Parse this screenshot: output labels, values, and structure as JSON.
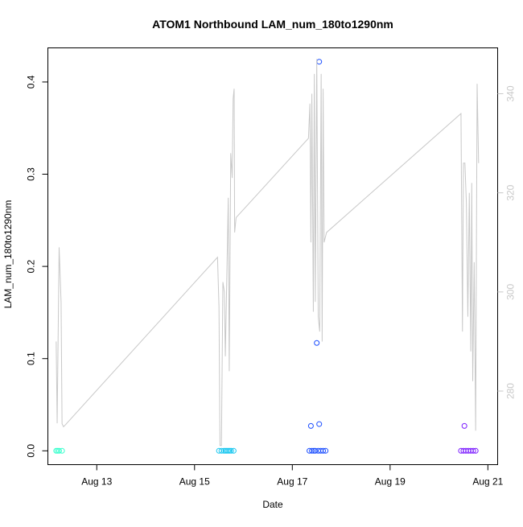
{
  "chart_data": {
    "type": "scatter",
    "title": "ATOM1 Northbound LAM_num_180to1290nm",
    "xlabel": "Date",
    "ylabel": "LAM_num_180to1290nm",
    "x_tick_labels": [
      "Aug 13",
      "Aug 15",
      "Aug 17",
      "Aug 19",
      "Aug 21"
    ],
    "x_tick_values": [
      13,
      15,
      17,
      19,
      21
    ],
    "xlim": [
      12.0,
      21.2
    ],
    "ylim": [
      -0.015,
      0.437
    ],
    "y_tick_values": [
      0.0,
      0.1,
      0.2,
      0.3,
      0.4
    ],
    "y_tick_labels": [
      "0.0",
      "0.1",
      "0.2",
      "0.3",
      "0.4"
    ],
    "y2_tick_values": [
      280,
      300,
      320,
      340
    ],
    "y2_tick_labels": [
      "280",
      "300",
      "320",
      "340"
    ],
    "y2lim": [
      265.15,
      349.25
    ],
    "series": [
      {
        "kind": "points",
        "color": "#33ffcc",
        "points": [
          [
            12.17,
            0
          ],
          [
            12.2,
            0
          ],
          [
            12.23,
            0
          ],
          [
            12.29,
            0
          ]
        ]
      },
      {
        "kind": "points",
        "color": "#19c7f0",
        "points": [
          [
            15.5,
            0
          ],
          [
            15.55,
            0
          ],
          [
            15.6,
            0
          ],
          [
            15.63,
            0
          ],
          [
            15.66,
            0
          ],
          [
            15.69,
            0
          ],
          [
            15.72,
            0
          ],
          [
            15.75,
            0
          ],
          [
            15.8,
            0
          ]
        ]
      },
      {
        "kind": "points",
        "color": "#1a4dff",
        "points": [
          [
            17.38,
            0.027
          ],
          [
            17.35,
            0
          ],
          [
            17.4,
            0
          ],
          [
            17.44,
            0
          ],
          [
            17.47,
            0
          ],
          [
            17.5,
            0.117
          ],
          [
            17.53,
            0
          ],
          [
            17.55,
            0.029
          ],
          [
            17.55,
            0.422
          ],
          [
            17.58,
            0
          ],
          [
            17.63,
            0
          ],
          [
            17.68,
            0
          ]
        ]
      },
      {
        "kind": "points",
        "color": "#7a1aff",
        "points": [
          [
            20.52,
            0.027
          ],
          [
            20.45,
            0
          ],
          [
            20.5,
            0
          ],
          [
            20.55,
            0
          ],
          [
            20.6,
            0
          ],
          [
            20.65,
            0
          ],
          [
            20.7,
            0
          ],
          [
            20.75,
            0
          ]
        ]
      },
      {
        "kind": "line",
        "axis": "y2",
        "color": "#c8c8c8",
        "points": [
          [
            12.17,
            290
          ],
          [
            12.19,
            273.5
          ],
          [
            12.23,
            309
          ],
          [
            12.27,
            298
          ],
          [
            12.29,
            273.4
          ],
          [
            12.32,
            272.8
          ],
          [
            12.36,
            273.2
          ],
          [
            15.47,
            307
          ],
          [
            15.5,
            297
          ],
          [
            15.52,
            269
          ],
          [
            15.55,
            269
          ],
          [
            15.58,
            302
          ],
          [
            15.61,
            300
          ],
          [
            15.63,
            287
          ],
          [
            15.66,
            303
          ],
          [
            15.69,
            319
          ],
          [
            15.71,
            284
          ],
          [
            15.74,
            328
          ],
          [
            15.77,
            323
          ],
          [
            15.79,
            339
          ],
          [
            15.81,
            341
          ],
          [
            15.82,
            312
          ],
          [
            15.85,
            315
          ],
          [
            17.33,
            331
          ],
          [
            17.36,
            338
          ],
          [
            17.38,
            310
          ],
          [
            17.4,
            340
          ],
          [
            17.43,
            296
          ],
          [
            17.45,
            344
          ],
          [
            17.47,
            298
          ],
          [
            17.5,
            347
          ],
          [
            17.53,
            295
          ],
          [
            17.56,
            292
          ],
          [
            17.59,
            344
          ],
          [
            17.61,
            290
          ],
          [
            17.63,
            341
          ],
          [
            17.65,
            310
          ],
          [
            17.7,
            312
          ],
          [
            20.45,
            336
          ],
          [
            20.48,
            292
          ],
          [
            20.5,
            326
          ],
          [
            20.53,
            326
          ],
          [
            20.56,
            318
          ],
          [
            20.59,
            295
          ],
          [
            20.62,
            320
          ],
          [
            20.65,
            288
          ],
          [
            20.67,
            322
          ],
          [
            20.69,
            282
          ],
          [
            20.72,
            306
          ],
          [
            20.75,
            272
          ],
          [
            20.78,
            342
          ],
          [
            20.81,
            326
          ]
        ]
      }
    ]
  }
}
